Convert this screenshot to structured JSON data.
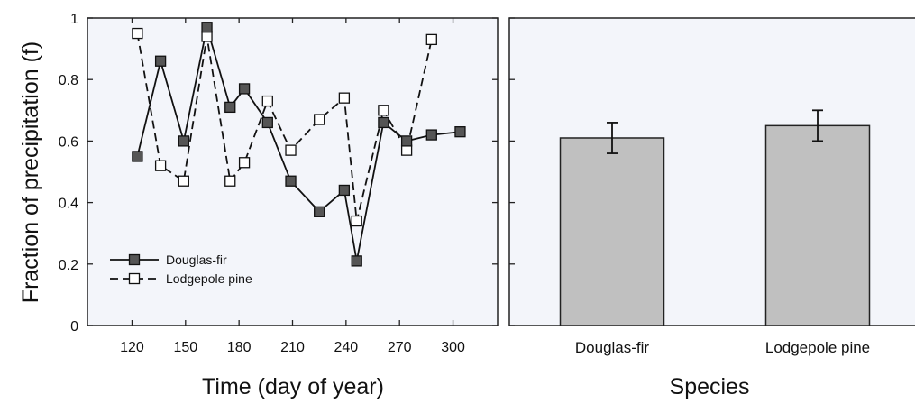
{
  "chart_data": [
    {
      "type": "line",
      "xlabel": "Time (day of year)",
      "ylabel": "Fraction of precipitation (f)",
      "xlim": [
        95,
        325
      ],
      "ylim": [
        0,
        1
      ],
      "xticks": [
        120,
        150,
        180,
        210,
        240,
        270,
        300
      ],
      "yticks": [
        0,
        0.2,
        0.4,
        0.6,
        0.8,
        1
      ],
      "ytick_labels": [
        "0",
        "0.2",
        "0.4",
        "0.6",
        "0.8",
        "1"
      ],
      "grid": false,
      "legend_position": "bottom-left",
      "series": [
        {
          "name": "Douglas-fir",
          "style": "solid line, filled square markers",
          "marker_color": "#555555",
          "x": [
            123,
            136,
            149,
            162,
            175,
            183,
            196,
            209,
            225,
            239,
            246,
            261,
            274,
            288,
            304
          ],
          "y": [
            0.55,
            0.86,
            0.6,
            0.97,
            0.71,
            0.77,
            0.66,
            0.47,
            0.37,
            0.44,
            0.21,
            0.66,
            0.6,
            0.62,
            0.63
          ]
        },
        {
          "name": "Lodgepole pine",
          "style": "dashed line, open square markers",
          "marker_color": "#ffffff",
          "x": [
            123,
            136,
            149,
            162,
            175,
            183,
            196,
            209,
            225,
            239,
            246,
            261,
            274,
            288
          ],
          "y": [
            0.95,
            0.52,
            0.47,
            0.94,
            0.47,
            0.53,
            0.73,
            0.57,
            0.67,
            0.74,
            0.34,
            0.7,
            0.57,
            0.93
          ]
        }
      ]
    },
    {
      "type": "bar",
      "xlabel": "Species",
      "ylim": [
        0,
        1
      ],
      "categories": [
        "Douglas-fir",
        "Lodgepole pine"
      ],
      "values": [
        0.61,
        0.65
      ],
      "error": [
        0.05,
        0.05
      ],
      "bar_color": "#c0c0c0",
      "grid": false
    }
  ],
  "colors": {
    "panel_background": "#f3f5fa",
    "bar_fill": "#c0c0c0",
    "filled_marker": "#555555"
  }
}
